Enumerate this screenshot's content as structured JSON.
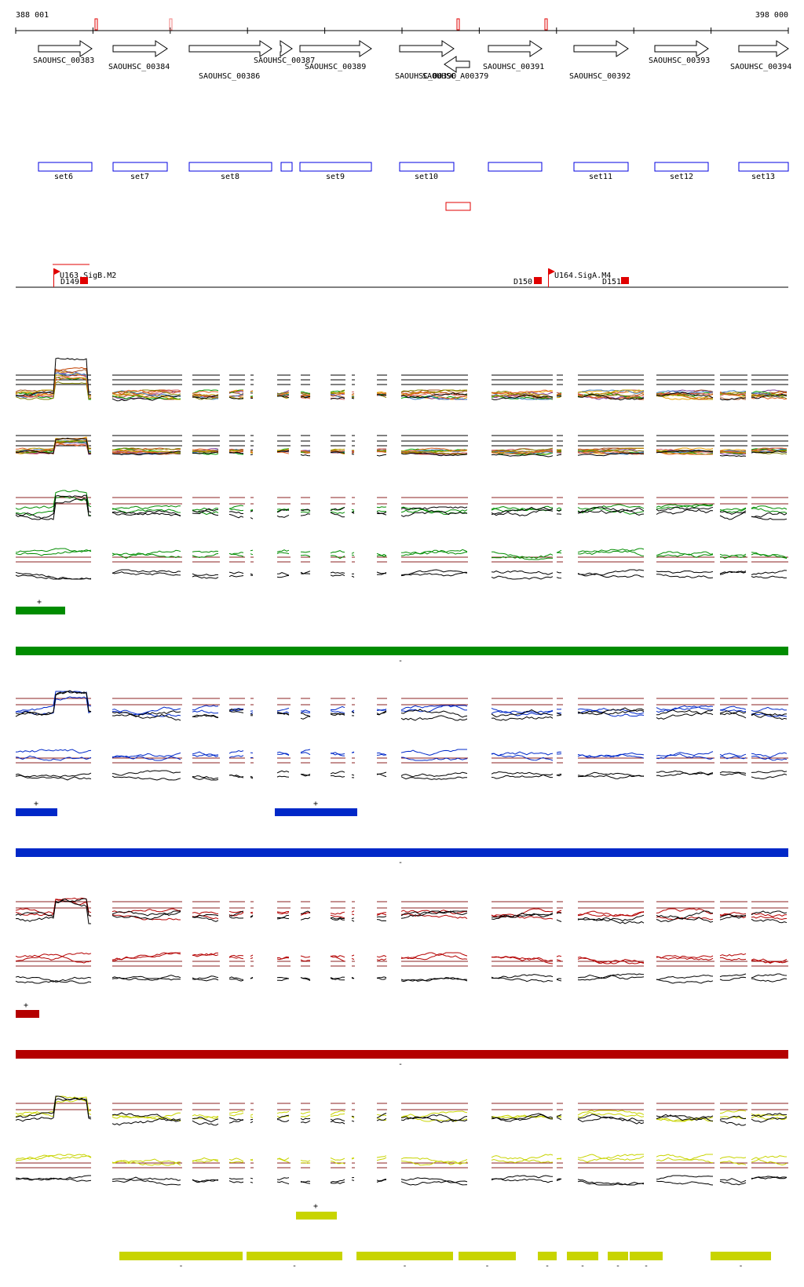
{
  "coords": {
    "start": "388 001",
    "end": "398 000"
  },
  "genes": [
    {
      "label": "SAOUHSC_00383"
    },
    {
      "label": "SAOUHSC_00384"
    },
    {
      "label": "SAOUHSC_00386"
    },
    {
      "label": "SAOUHSC_00387"
    },
    {
      "label": "SAOUHSC_00389"
    },
    {
      "label": "SAOUHSC_00390"
    },
    {
      "label": "SAOUHSC_A00379"
    },
    {
      "label": "SAOUHSC_00391"
    },
    {
      "label": "SAOUHSC_00392"
    },
    {
      "label": "SAOUHSC_00393"
    },
    {
      "label": "SAOUHSC_00394"
    }
  ],
  "sets": [
    "set6",
    "set7",
    "set8",
    "",
    "set9",
    "set10",
    "",
    "set11",
    "set12",
    "set13"
  ],
  "promoters": [
    {
      "label": "U163.SigB.M2"
    },
    {
      "label": "U164.SigA.M4"
    }
  ],
  "downstream": [
    {
      "label": "D149"
    },
    {
      "label": "D150"
    },
    {
      "label": "D151"
    }
  ],
  "strand": {
    "plus": "+",
    "minus": "-"
  },
  "colors": {
    "green": "#008c00",
    "blue": "#0028c8",
    "red": "#b40000",
    "yellow": "#c8d400",
    "marker": "#e00000",
    "setbox": "#0000e0",
    "guide": "#8b2020"
  }
}
